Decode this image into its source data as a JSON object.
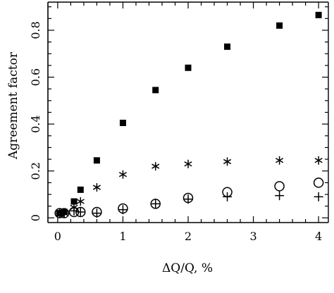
{
  "chart_data": {
    "type": "scatter",
    "title": "",
    "xlabel": "ΔQ/Q, %",
    "ylabel": "Agreement factor",
    "xlim": [
      -0.15,
      4.15
    ],
    "ylim": [
      -0.02,
      0.92
    ],
    "x_ticks": [
      0,
      1,
      2,
      3,
      4
    ],
    "x_tick_labels": [
      "0",
      "1",
      "2",
      "3",
      "4"
    ],
    "y_ticks": [
      0,
      0.2,
      0.4,
      0.6,
      0.8
    ],
    "y_tick_labels": [
      "0",
      "0.2",
      "0.4",
      "0.6",
      "0.8"
    ],
    "grid": false,
    "legend": "none",
    "series": [
      {
        "marker": "filled-square",
        "x": [
          0.03,
          0.1,
          0.25,
          0.35,
          0.6,
          1.0,
          1.5,
          2.0,
          2.6,
          3.4,
          4.0
        ],
        "y": [
          0.02,
          0.025,
          0.07,
          0.12,
          0.245,
          0.405,
          0.545,
          0.64,
          0.73,
          0.82,
          0.865
        ]
      },
      {
        "marker": "asterisk",
        "x": [
          0.03,
          0.1,
          0.25,
          0.35,
          0.6,
          1.0,
          1.5,
          2.0,
          2.6,
          3.4,
          4.0
        ],
        "y": [
          0.02,
          0.02,
          0.045,
          0.07,
          0.13,
          0.185,
          0.22,
          0.23,
          0.24,
          0.245,
          0.245
        ]
      },
      {
        "marker": "open-circle",
        "x": [
          0.03,
          0.1,
          0.25,
          0.35,
          0.6,
          1.0,
          1.5,
          2.0,
          2.6,
          3.4,
          4.0
        ],
        "y": [
          0.02,
          0.02,
          0.025,
          0.025,
          0.025,
          0.04,
          0.06,
          0.085,
          0.11,
          0.135,
          0.15
        ]
      },
      {
        "marker": "plus",
        "x": [
          0.03,
          0.1,
          0.25,
          0.35,
          0.6,
          1.0,
          1.5,
          2.0,
          2.6,
          3.4,
          4.0
        ],
        "y": [
          0.02,
          0.02,
          0.03,
          0.025,
          0.02,
          0.035,
          0.06,
          0.08,
          0.09,
          0.095,
          0.09
        ]
      }
    ]
  }
}
